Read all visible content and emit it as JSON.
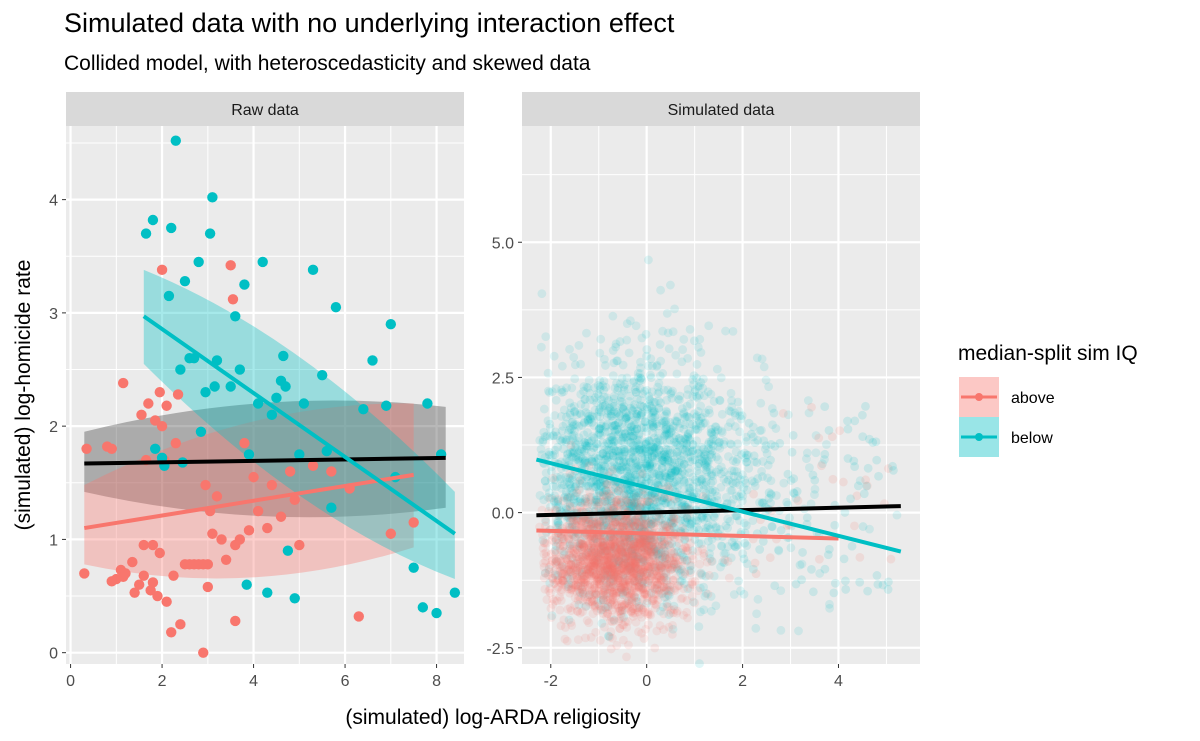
{
  "chart_data": {
    "type": "scatter",
    "title": "Simulated data with no underlying interaction effect",
    "subtitle": "Collided model, with heteroscedasticity and skewed data",
    "xlabel": "(simulated) log-ARDA religiosity",
    "ylabel": "(simulated) log-homicide rate",
    "grid": true,
    "colors": {
      "above": "#F8766D",
      "below": "#00BFC4",
      "overall": "#000000",
      "panel_bg": "#EBEBEB",
      "strip_bg": "#D9D9D9",
      "grid": "#FFFFFF"
    },
    "legend": {
      "title": "median-split sim IQ",
      "position": "right",
      "entries": [
        {
          "key": "above",
          "label": "above"
        },
        {
          "key": "below",
          "label": "below"
        }
      ]
    },
    "panels": [
      {
        "label": "Raw data",
        "xlim": [
          -0.1,
          8.6
        ],
        "ylim": [
          -0.1,
          4.65
        ],
        "x_ticks": [
          0,
          2,
          4,
          6,
          8
        ],
        "x_tick_labels": [
          "0",
          "2",
          "4",
          "6",
          "8"
        ],
        "y_ticks": [
          0,
          1,
          2,
          3,
          4
        ],
        "y_tick_labels": [
          "0",
          "1",
          "2",
          "3",
          "4"
        ],
        "series": [
          {
            "group": "above",
            "points": [
              [
                0.3,
                0.7
              ],
              [
                0.35,
                1.8
              ],
              [
                0.8,
                1.82
              ],
              [
                0.9,
                1.8
              ],
              [
                0.9,
                0.63
              ],
              [
                1.0,
                0.65
              ],
              [
                1.1,
                0.73
              ],
              [
                1.15,
                2.38
              ],
              [
                1.15,
                0.67
              ],
              [
                1.2,
                0.7
              ],
              [
                1.35,
                0.8
              ],
              [
                1.4,
                0.53
              ],
              [
                1.5,
                0.6
              ],
              [
                1.55,
                2.1
              ],
              [
                1.6,
                0.95
              ],
              [
                1.6,
                0.68
              ],
              [
                1.65,
                1.7
              ],
              [
                1.7,
                2.2
              ],
              [
                1.75,
                0.55
              ],
              [
                1.8,
                0.95
              ],
              [
                1.8,
                0.62
              ],
              [
                1.85,
                2.05
              ],
              [
                1.9,
                0.5
              ],
              [
                1.95,
                2.3
              ],
              [
                1.95,
                0.88
              ],
              [
                2.0,
                3.38
              ],
              [
                2.0,
                2.0
              ],
              [
                2.05,
                1.7
              ],
              [
                2.1,
                2.18
              ],
              [
                2.1,
                0.45
              ],
              [
                2.2,
                0.18
              ],
              [
                2.25,
                0.68
              ],
              [
                2.3,
                1.85
              ],
              [
                2.35,
                2.28
              ],
              [
                2.4,
                0.25
              ],
              [
                2.5,
                0.78
              ],
              [
                2.6,
                0.78
              ],
              [
                2.7,
                0.78
              ],
              [
                2.8,
                0.78
              ],
              [
                2.9,
                0.78
              ],
              [
                2.9,
                0.0
              ],
              [
                3.0,
                0.78
              ],
              [
                2.95,
                1.48
              ],
              [
                3.0,
                0.58
              ],
              [
                3.05,
                1.25
              ],
              [
                3.1,
                1.05
              ],
              [
                3.2,
                1.38
              ],
              [
                3.3,
                1.0
              ],
              [
                3.4,
                0.82
              ],
              [
                3.5,
                3.42
              ],
              [
                3.55,
                3.12
              ],
              [
                3.6,
                0.95
              ],
              [
                3.6,
                0.28
              ],
              [
                3.7,
                1.0
              ],
              [
                3.8,
                1.85
              ],
              [
                3.9,
                1.08
              ],
              [
                4.0,
                1.55
              ],
              [
                4.1,
                1.25
              ],
              [
                4.3,
                1.1
              ],
              [
                4.4,
                1.48
              ],
              [
                4.6,
                1.2
              ],
              [
                4.8,
                1.6
              ],
              [
                4.9,
                1.35
              ],
              [
                5.0,
                0.95
              ],
              [
                5.3,
                1.65
              ],
              [
                5.7,
                1.6
              ],
              [
                6.1,
                1.45
              ],
              [
                6.3,
                0.32
              ],
              [
                7.0,
                1.05
              ],
              [
                7.5,
                1.15
              ]
            ]
          },
          {
            "group": "below",
            "points": [
              [
                1.65,
                3.7
              ],
              [
                1.8,
                3.82
              ],
              [
                1.85,
                1.8
              ],
              [
                2.0,
                1.72
              ],
              [
                2.05,
                1.65
              ],
              [
                2.15,
                3.15
              ],
              [
                2.2,
                3.75
              ],
              [
                2.3,
                4.52
              ],
              [
                2.4,
                2.5
              ],
              [
                2.45,
                1.68
              ],
              [
                2.5,
                3.28
              ],
              [
                2.6,
                2.6
              ],
              [
                2.7,
                2.6
              ],
              [
                2.8,
                3.45
              ],
              [
                2.85,
                1.95
              ],
              [
                2.95,
                2.3
              ],
              [
                3.05,
                3.7
              ],
              [
                3.1,
                4.02
              ],
              [
                3.15,
                2.35
              ],
              [
                3.2,
                2.58
              ],
              [
                3.5,
                2.35
              ],
              [
                3.6,
                2.97
              ],
              [
                3.7,
                2.5
              ],
              [
                3.8,
                3.25
              ],
              [
                3.85,
                0.6
              ],
              [
                3.9,
                1.75
              ],
              [
                4.1,
                2.2
              ],
              [
                4.2,
                3.45
              ],
              [
                4.3,
                0.53
              ],
              [
                4.4,
                2.1
              ],
              [
                4.5,
                2.25
              ],
              [
                4.6,
                2.4
              ],
              [
                4.65,
                2.62
              ],
              [
                4.7,
                2.35
              ],
              [
                4.75,
                0.9
              ],
              [
                4.9,
                0.48
              ],
              [
                5.0,
                1.75
              ],
              [
                5.1,
                2.2
              ],
              [
                5.3,
                3.38
              ],
              [
                5.5,
                2.45
              ],
              [
                5.6,
                1.78
              ],
              [
                5.7,
                1.28
              ],
              [
                5.8,
                3.05
              ],
              [
                6.4,
                2.15
              ],
              [
                6.6,
                2.58
              ],
              [
                6.9,
                2.18
              ],
              [
                7.0,
                2.9
              ],
              [
                7.1,
                1.55
              ],
              [
                7.5,
                0.75
              ],
              [
                7.7,
                0.4
              ],
              [
                7.8,
                2.2
              ],
              [
                8.0,
                0.35
              ],
              [
                8.1,
                1.75
              ],
              [
                8.4,
                0.53
              ]
            ]
          }
        ],
        "fits": [
          {
            "group": "overall",
            "x": [
              0.3,
              8.2
            ],
            "y": [
              1.67,
              1.72
            ],
            "band": [
              [
                1.42,
                1.95
              ],
              [
                1.28,
                2.17
              ]
            ]
          },
          {
            "group": "above",
            "x": [
              0.3,
              7.5
            ],
            "y": [
              1.1,
              1.57
            ],
            "band": [
              [
                0.78,
                1.48
              ],
              [
                0.93,
                2.2
              ]
            ]
          },
          {
            "group": "below",
            "x": [
              1.6,
              8.4
            ],
            "y": [
              2.97,
              1.05
            ],
            "band": [
              [
                2.55,
                3.38
              ],
              [
                0.65,
                1.42
              ]
            ]
          }
        ]
      },
      {
        "label": "Simulated data",
        "xlim": [
          -2.6,
          5.7
        ],
        "ylim": [
          -2.8,
          7.15
        ],
        "x_ticks": [
          -2,
          0,
          2,
          4
        ],
        "x_tick_labels": [
          "-2",
          "0",
          "2",
          "4"
        ],
        "y_ticks": [
          -2.5,
          0.0,
          2.5,
          5.0
        ],
        "y_tick_labels": [
          "-2.5",
          "0.0",
          "2.5",
          "5.0"
        ],
        "fits": [
          {
            "group": "overall",
            "x": [
              -2.3,
              5.3
            ],
            "y": [
              -0.05,
              0.12
            ]
          },
          {
            "group": "above",
            "x": [
              -2.3,
              4.0
            ],
            "y": [
              -0.33,
              -0.48
            ]
          },
          {
            "group": "below",
            "x": [
              -2.3,
              5.3
            ],
            "y": [
              0.98,
              -0.72
            ]
          }
        ]
      }
    ]
  }
}
